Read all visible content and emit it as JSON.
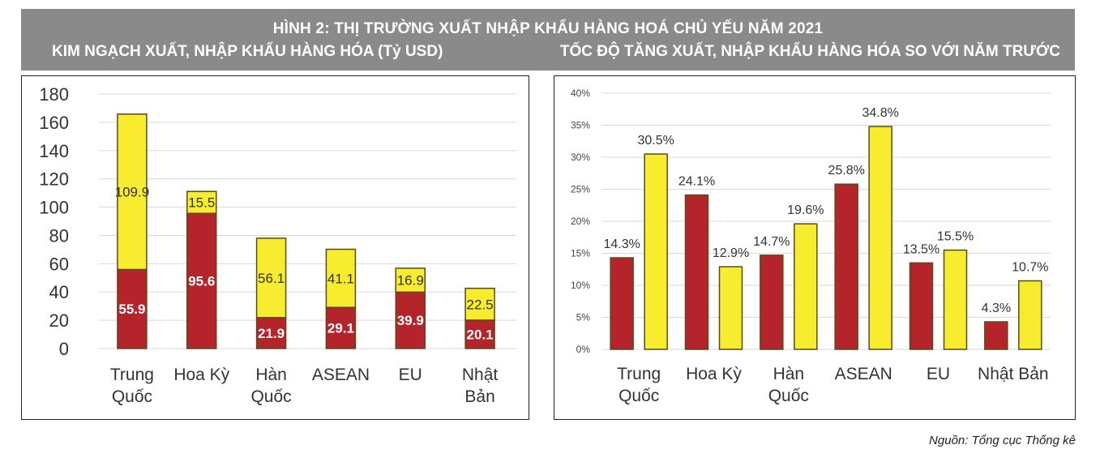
{
  "header": {
    "title": "HÌNH 2: THỊ TRƯỜNG XUẤT NHẬP KHẨU HÀNG HOÁ CHỦ YẾU NĂM 2021",
    "left_subtitle": "KIM NGẠCH XUẤT, NHẬP  KHẨU HÀNG HÓA (Tỷ USD)",
    "right_subtitle": "TỐC ĐỘ TĂNG XUẤT, NHẬP KHẨU HÀNG HÓA SO VỚI NĂM TRƯỚC"
  },
  "source": "Nguồn: Tổng cục Thống kê",
  "colors": {
    "red": "#b5232b",
    "yellow": "#f7ec2e",
    "outline": "#5a4a1a",
    "grid": "#d9d9d9"
  },
  "chart_data": [
    {
      "type": "bar",
      "stacked": true,
      "title": "",
      "categories": [
        [
          "Trung",
          "Quốc"
        ],
        [
          "Hoa Kỳ"
        ],
        [
          "Hàn",
          "Quốc"
        ],
        [
          "ASEAN"
        ],
        [
          "EU"
        ],
        [
          "Nhật",
          "Bản"
        ]
      ],
      "series": [
        {
          "color": "#b5232b",
          "values": [
            55.9,
            95.6,
            21.9,
            29.1,
            39.9,
            20.1
          ],
          "labels": [
            "55.9",
            "95.6",
            "21.9",
            "29.1",
            "39.9",
            "20.1"
          ]
        },
        {
          "color": "#f7ec2e",
          "values": [
            109.9,
            15.5,
            56.1,
            41.1,
            16.9,
            22.5
          ],
          "labels": [
            "109.9",
            "15.5",
            "56.1",
            "41.1",
            "16.9",
            "22.5"
          ]
        }
      ],
      "ylim": [
        0,
        180
      ],
      "yticks": [
        "0",
        "20",
        "40",
        "60",
        "80",
        "100",
        "120",
        "140",
        "160",
        "180"
      ],
      "grid": true,
      "legend": "none"
    },
    {
      "type": "bar",
      "stacked": false,
      "title": "",
      "categories": [
        [
          "Trung",
          "Quốc"
        ],
        [
          "Hoa Kỳ"
        ],
        [
          "Hàn",
          "Quốc"
        ],
        [
          "ASEAN"
        ],
        [
          "EU"
        ],
        [
          "Nhật Bản"
        ]
      ],
      "series": [
        {
          "color": "#b5232b",
          "values": [
            14.3,
            24.1,
            14.7,
            25.8,
            13.5,
            4.3
          ],
          "labels": [
            "14.3%",
            "24.1%",
            "14.7%",
            "25.8%",
            "13.5%",
            "4.3%"
          ]
        },
        {
          "color": "#f7ec2e",
          "values": [
            30.5,
            12.9,
            19.6,
            34.8,
            15.5,
            10.7
          ],
          "labels": [
            "30.5%",
            "12.9%",
            "19.6%",
            "34.8%",
            "15.5%",
            "10.7%"
          ]
        }
      ],
      "ylim": [
        0,
        40
      ],
      "yticks": [
        "0%",
        "5%",
        "10%",
        "15%",
        "20%",
        "25%",
        "30%",
        "35%",
        "40%"
      ],
      "grid": true,
      "legend": "none"
    }
  ]
}
